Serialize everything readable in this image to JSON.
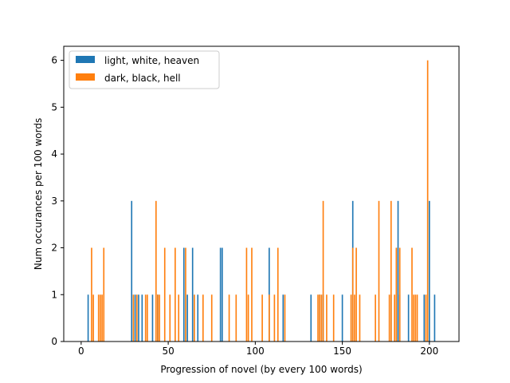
{
  "chart_data": {
    "type": "bar",
    "xlabel": "Progression of novel (by every 100 words)",
    "ylabel": "Num occurances per 100 words",
    "xlim": [
      -10,
      217
    ],
    "ylim": [
      0,
      6.3
    ],
    "xticks": [
      0,
      50,
      100,
      150,
      200
    ],
    "yticks": [
      0,
      1,
      2,
      3,
      4,
      5,
      6
    ],
    "grid": false,
    "legend_position": "upper-left",
    "series": [
      {
        "name": "light, white, heaven",
        "color": "#1f77b4",
        "x": [
          4,
          29,
          31,
          33,
          35,
          41,
          44,
          59,
          61,
          64,
          67,
          80,
          81,
          108,
          116,
          132,
          137,
          139,
          150,
          156,
          178,
          181,
          182,
          183,
          188,
          197,
          200,
          203
        ],
        "values": [
          1,
          3,
          1,
          1,
          1,
          1,
          1,
          2,
          1,
          2,
          1,
          2,
          2,
          2,
          1,
          1,
          1,
          1,
          1,
          3,
          1,
          2,
          3,
          1,
          1,
          1,
          3,
          1
        ]
      },
      {
        "name": "dark, black, hell",
        "color": "#ff7f0e",
        "x": [
          6,
          7,
          10,
          11,
          12,
          13,
          30,
          32,
          37,
          38,
          43,
          44,
          45,
          48,
          51,
          54,
          56,
          60,
          65,
          70,
          75,
          85,
          89,
          95,
          96,
          98,
          104,
          108,
          111,
          113,
          117,
          136,
          137,
          138,
          139,
          141,
          145,
          155,
          156,
          157,
          158,
          160,
          169,
          171,
          177,
          178,
          180,
          181,
          183,
          190,
          191,
          192,
          193,
          198,
          199
        ],
        "values": [
          2,
          1,
          1,
          1,
          1,
          2,
          1,
          1,
          1,
          1,
          3,
          1,
          1,
          2,
          1,
          2,
          1,
          2,
          1,
          1,
          1,
          1,
          1,
          2,
          1,
          2,
          1,
          1,
          1,
          2,
          1,
          1,
          1,
          1,
          3,
          1,
          1,
          1,
          2,
          1,
          2,
          1,
          1,
          3,
          1,
          3,
          1,
          2,
          2,
          2,
          1,
          1,
          1,
          1,
          6
        ]
      }
    ]
  }
}
